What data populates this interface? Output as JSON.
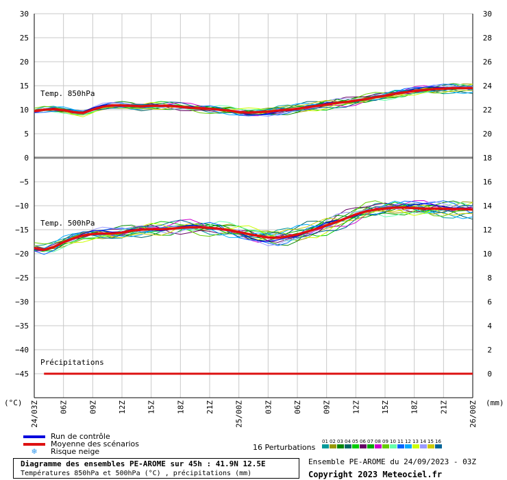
{
  "chart_data": {
    "type": "line",
    "title": "Diagramme des ensembles PE-AROME sur 45h : 41.9N 12.5E",
    "subtitle": "Températures 850hPa et 500hPa (°C) , précipitations (mm)",
    "left_axis": {
      "unit_label": "(°C)",
      "range": [
        -50,
        30
      ],
      "ticks": [
        30,
        25,
        20,
        15,
        10,
        5,
        0,
        -5,
        -10,
        -15,
        -20,
        -25,
        -30,
        -35,
        -40,
        -45
      ]
    },
    "right_axis": {
      "unit_label": "(mm)",
      "range": [
        -2,
        30
      ],
      "ticks": [
        30,
        28,
        26,
        24,
        22,
        20,
        18,
        16,
        14,
        12,
        10,
        8,
        6,
        4,
        2,
        0
      ]
    },
    "x_axis": {
      "range_hours": [
        0,
        45
      ],
      "tick_labels": [
        "24/03Z",
        "06Z",
        "09Z",
        "12Z",
        "15Z",
        "18Z",
        "21Z",
        "25/00Z",
        "03Z",
        "06Z",
        "09Z",
        "12Z",
        "15Z",
        "18Z",
        "21Z",
        "26/00Z"
      ],
      "tick_hours": [
        0,
        3,
        6,
        9,
        12,
        15,
        18,
        21,
        24,
        27,
        30,
        33,
        36,
        39,
        42,
        45
      ]
    },
    "grid": true,
    "annotations": [
      {
        "text": "Temp. 850hPa",
        "near_value": 13
      },
      {
        "text": "Temp. 500hPa",
        "near_value": -14
      },
      {
        "text": "Précipitations",
        "near_value": -43
      }
    ],
    "mean_850": {
      "x": [
        0,
        1,
        2,
        3,
        4,
        5,
        6,
        7,
        8,
        9,
        10,
        11,
        12,
        13,
        14,
        15,
        16,
        17,
        18,
        19,
        20,
        21,
        22,
        23,
        24,
        25,
        26,
        27,
        28,
        29,
        30,
        31,
        32,
        33,
        34,
        35,
        36,
        37,
        38,
        39,
        40,
        41,
        42,
        43,
        44,
        45
      ],
      "values": [
        9.7,
        10.0,
        10.1,
        9.9,
        9.5,
        9.3,
        10.0,
        10.6,
        10.9,
        10.9,
        10.8,
        10.7,
        10.8,
        10.8,
        10.8,
        10.6,
        10.4,
        10.3,
        10.2,
        10.0,
        9.8,
        9.5,
        9.4,
        9.5,
        9.6,
        9.8,
        10.0,
        10.2,
        10.5,
        10.8,
        11.1,
        11.4,
        11.6,
        11.9,
        12.2,
        12.6,
        12.9,
        13.3,
        13.6,
        13.9,
        14.1,
        14.3,
        14.4,
        14.5,
        14.5,
        14.5
      ]
    },
    "mean_500": {
      "x": [
        0,
        1,
        2,
        3,
        4,
        5,
        6,
        7,
        8,
        9,
        10,
        11,
        12,
        13,
        14,
        15,
        16,
        17,
        18,
        19,
        20,
        21,
        22,
        23,
        24,
        25,
        26,
        27,
        28,
        29,
        30,
        31,
        32,
        33,
        34,
        35,
        36,
        37,
        38,
        39,
        40,
        41,
        42,
        43,
        44,
        45
      ],
      "values": [
        -18.8,
        -19.2,
        -18.6,
        -17.6,
        -16.8,
        -16.2,
        -15.9,
        -15.8,
        -15.8,
        -15.6,
        -15.2,
        -15.0,
        -14.9,
        -14.9,
        -14.8,
        -14.6,
        -14.5,
        -14.5,
        -14.6,
        -14.8,
        -15.1,
        -15.5,
        -15.9,
        -16.3,
        -16.6,
        -16.7,
        -16.4,
        -16.0,
        -15.4,
        -14.8,
        -14.1,
        -13.4,
        -12.6,
        -11.8,
        -11.2,
        -10.8,
        -10.6,
        -10.4,
        -10.4,
        -10.5,
        -10.6,
        -10.6,
        -10.6,
        -10.7,
        -10.7,
        -10.8
      ]
    },
    "precipitation_mean": {
      "x": [
        1,
        45
      ],
      "values": [
        0,
        0
      ]
    },
    "control_color": "#0000dd",
    "mean_color": "#dd1111",
    "perturbation_colors": [
      "#009999",
      "#999900",
      "#008800",
      "#006666",
      "#00cc00",
      "#660066",
      "#00aa00",
      "#cc00cc",
      "#66cc00",
      "#66ffaa",
      "#0066ff",
      "#00aaff",
      "#ccff00",
      "#9999ff",
      "#cccc00",
      "#006699"
    ]
  },
  "legend": {
    "control": "Run de contrôle",
    "mean": "Moyenne des scénarios",
    "snow": "Risque neige",
    "snow_icon": "snowflake-icon",
    "perturbations_label": "16 Perturbations",
    "perturbation_numbers": [
      "01",
      "02",
      "03",
      "04",
      "05",
      "06",
      "07",
      "08",
      "09",
      "10",
      "11",
      "12",
      "13",
      "14",
      "15",
      "16"
    ]
  },
  "footer": {
    "title": "Diagramme des ensembles PE-AROME sur 45h : 41.9N 12.5E",
    "subtitle": "Températures 850hPa et 500hPa (°C) , précipitations (mm)",
    "ensemble": "Ensemble PE-AROME du 24/09/2023 - 03Z",
    "copyright": "Copyright 2023 Meteociel.fr"
  }
}
